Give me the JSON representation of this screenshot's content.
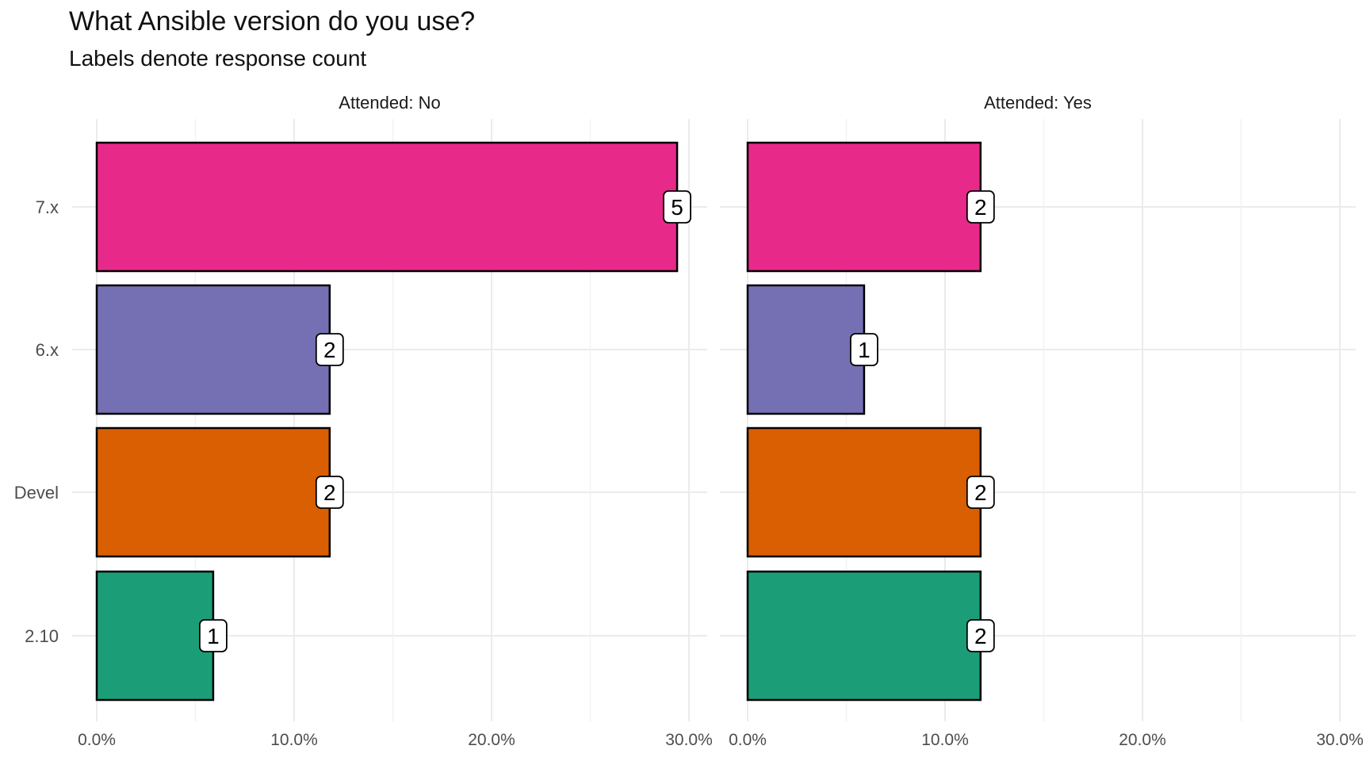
{
  "chart_data": {
    "type": "bar",
    "orientation": "horizontal",
    "title": "What Ansible version do you use?",
    "subtitle": "Labels denote response count",
    "categories": [
      "7.x",
      "6.x",
      "Devel",
      "2.10"
    ],
    "x_ticks": [
      "0.0%",
      "10.0%",
      "20.0%",
      "30.0%"
    ],
    "xlim": [
      0,
      30
    ],
    "grid": true,
    "colors": {
      "7.x": "#e7298a",
      "6.x": "#7570b3",
      "Devel": "#d95f02",
      "2.10": "#1b9e77"
    },
    "facets": [
      {
        "label": "Attended: No",
        "percent": [
          29.4,
          11.8,
          11.8,
          5.9
        ],
        "counts": [
          "5",
          "2",
          "2",
          "1"
        ]
      },
      {
        "label": "Attended: Yes",
        "percent": [
          11.8,
          5.9,
          11.8,
          11.8
        ],
        "counts": [
          "2",
          "1",
          "2",
          "2"
        ]
      }
    ]
  }
}
